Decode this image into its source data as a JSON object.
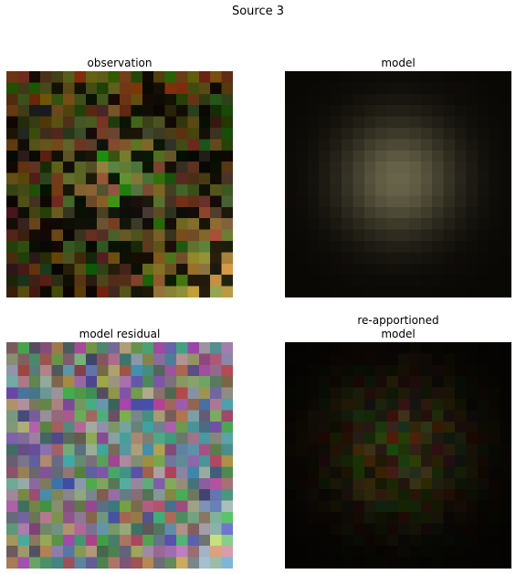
{
  "figure": {
    "title": "Source 3",
    "panels": [
      {
        "id": "observation",
        "title": "observation",
        "kind": "observation"
      },
      {
        "id": "model",
        "title": "model",
        "kind": "model"
      },
      {
        "id": "residual",
        "title": "model residual",
        "kind": "residual"
      },
      {
        "id": "reapportioned",
        "title": "re-apportioned\nmodel",
        "kind": "reapportioned"
      }
    ]
  }
}
